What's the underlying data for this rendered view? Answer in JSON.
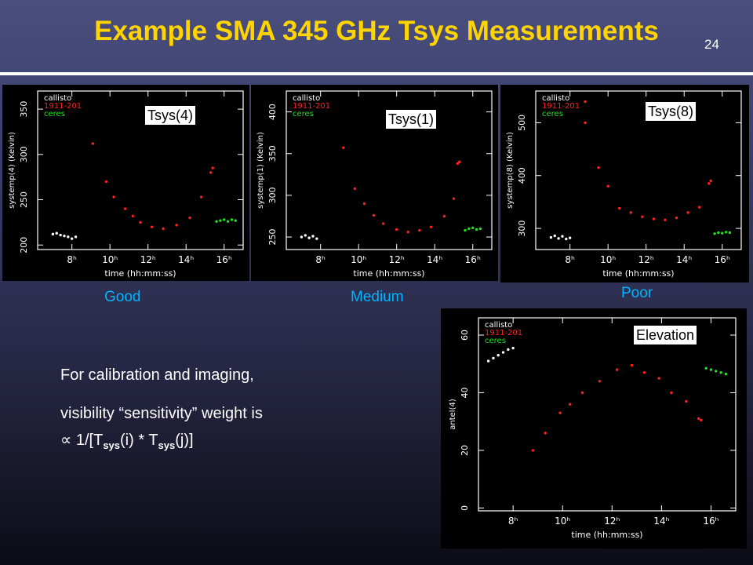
{
  "slide": {
    "title": "Example SMA 345 GHz Tsys Measurements",
    "number": "24"
  },
  "colors": {
    "title": "#ffd400",
    "quality_label": "#00b4ff",
    "callisto": "#ffffff",
    "source_1911": "#ff2020",
    "ceres": "#20e020"
  },
  "labels": {
    "good": "Good",
    "medium": "Medium",
    "poor": "Poor"
  },
  "text": {
    "line1": "For calibration and imaging,",
    "line2": "visibility “sensitivity” weight is",
    "prop_symbol": "∝",
    "formula_a": " 1/[T",
    "sub1": "sys",
    "formula_b": "(i) * T",
    "sub2": "sys",
    "formula_c": "(j)]"
  },
  "chart_data": [
    {
      "type": "scatter",
      "title": "Tsys(4)",
      "xlabel": "time (hh:mm:ss)",
      "ylabel": "systemp(4) (Kelvin)",
      "xlim": [
        6.2,
        17.0
      ],
      "ylim": [
        195,
        370
      ],
      "xticks": [
        8,
        10,
        12,
        14,
        16
      ],
      "xtick_labels": [
        "8ʰ",
        "10ʰ",
        "12ʰ",
        "14ʰ",
        "16ʰ"
      ],
      "yticks": [
        200,
        250,
        300,
        350
      ],
      "legend": [
        "callisto",
        "1911-201",
        "ceres"
      ],
      "legend_position": "top-left",
      "series": [
        {
          "name": "callisto",
          "points": [
            [
              7.0,
              212
            ],
            [
              7.2,
              213
            ],
            [
              7.4,
              211
            ],
            [
              7.6,
              210
            ],
            [
              7.8,
              209
            ],
            [
              8.0,
              207
            ],
            [
              8.2,
              209
            ]
          ]
        },
        {
          "name": "1911-201",
          "points": [
            [
              9.1,
              312
            ],
            [
              9.8,
              270
            ],
            [
              10.2,
              253
            ],
            [
              10.8,
              240
            ],
            [
              11.2,
              232
            ],
            [
              11.6,
              225
            ],
            [
              12.2,
              220
            ],
            [
              12.8,
              218
            ],
            [
              13.5,
              222
            ],
            [
              14.2,
              230
            ],
            [
              14.8,
              253
            ],
            [
              15.3,
              280
            ],
            [
              15.4,
              285
            ]
          ]
        },
        {
          "name": "ceres",
          "points": [
            [
              15.6,
              226
            ],
            [
              15.8,
              227
            ],
            [
              16.0,
              228
            ],
            [
              16.2,
              226
            ],
            [
              16.4,
              228
            ],
            [
              16.6,
              227
            ]
          ]
        }
      ]
    },
    {
      "type": "scatter",
      "title": "Tsys(1)",
      "xlabel": "time (hh:mm:ss)",
      "ylabel": "systemp(1) (Kelvin)",
      "xlim": [
        6.2,
        17.0
      ],
      "ylim": [
        235,
        425
      ],
      "xticks": [
        8,
        10,
        12,
        14,
        16
      ],
      "xtick_labels": [
        "8ʰ",
        "10ʰ",
        "12ʰ",
        "14ʰ",
        "16ʰ"
      ],
      "yticks": [
        250,
        300,
        350,
        400
      ],
      "legend": [
        "callisto",
        "1911-201",
        "ceres"
      ],
      "legend_position": "top-left",
      "series": [
        {
          "name": "callisto",
          "points": [
            [
              7.0,
              250
            ],
            [
              7.2,
              252
            ],
            [
              7.4,
              249
            ],
            [
              7.6,
              251
            ],
            [
              7.8,
              248
            ]
          ]
        },
        {
          "name": "1911-201",
          "points": [
            [
              9.2,
              357
            ],
            [
              9.8,
              308
            ],
            [
              10.3,
              290
            ],
            [
              10.8,
              276
            ],
            [
              11.3,
              266
            ],
            [
              12.0,
              259
            ],
            [
              12.6,
              256
            ],
            [
              13.2,
              258
            ],
            [
              13.8,
              262
            ],
            [
              14.5,
              275
            ],
            [
              15.0,
              296
            ],
            [
              15.2,
              338
            ],
            [
              15.3,
              340
            ]
          ]
        },
        {
          "name": "ceres",
          "points": [
            [
              15.6,
              258
            ],
            [
              15.8,
              260
            ],
            [
              16.0,
              261
            ],
            [
              16.2,
              259
            ],
            [
              16.4,
              260
            ]
          ]
        }
      ]
    },
    {
      "type": "scatter",
      "title": "Tsys(8)",
      "xlabel": "time (hh:mm:ss)",
      "ylabel": "systemp(8) (Kelvin)",
      "xlim": [
        6.2,
        17.0
      ],
      "ylim": [
        260,
        560
      ],
      "xticks": [
        8,
        10,
        12,
        14,
        16
      ],
      "xtick_labels": [
        "8ʰ",
        "10ʰ",
        "12ʰ",
        "14ʰ",
        "16ʰ"
      ],
      "yticks": [
        300,
        400,
        500
      ],
      "legend": [
        "callisto",
        "1911-201",
        "ceres"
      ],
      "legend_position": "top-left",
      "series": [
        {
          "name": "callisto",
          "points": [
            [
              7.0,
              283
            ],
            [
              7.2,
              286
            ],
            [
              7.4,
              281
            ],
            [
              7.6,
              285
            ],
            [
              7.8,
              280
            ],
            [
              8.0,
              282
            ]
          ]
        },
        {
          "name": "1911-201",
          "points": [
            [
              8.8,
              540
            ],
            [
              8.8,
              500
            ],
            [
              9.5,
              415
            ],
            [
              10.0,
              380
            ],
            [
              10.6,
              338
            ],
            [
              11.2,
              330
            ],
            [
              11.8,
              322
            ],
            [
              12.4,
              318
            ],
            [
              13.0,
              316
            ],
            [
              13.6,
              320
            ],
            [
              14.2,
              330
            ],
            [
              14.8,
              340
            ],
            [
              15.3,
              385
            ],
            [
              15.4,
              390
            ]
          ]
        },
        {
          "name": "ceres",
          "points": [
            [
              15.6,
              290
            ],
            [
              15.8,
              292
            ],
            [
              16.0,
              291
            ],
            [
              16.2,
              293
            ],
            [
              16.4,
              292
            ]
          ]
        }
      ]
    },
    {
      "type": "scatter",
      "title": "Elevation",
      "xlabel": "time (hh:mm:ss)",
      "ylabel": "antel(4)",
      "xlim": [
        6.6,
        17.0
      ],
      "ylim": [
        -1,
        66
      ],
      "xticks": [
        8,
        10,
        12,
        14,
        16
      ],
      "xtick_labels": [
        "8ʰ",
        "10ʰ",
        "12ʰ",
        "14ʰ",
        "16ʰ"
      ],
      "yticks": [
        0,
        20,
        40,
        60
      ],
      "legend": [
        "callisto",
        "1911-201",
        "ceres"
      ],
      "legend_position": "top-left",
      "series": [
        {
          "name": "callisto",
          "points": [
            [
              7.0,
              51
            ],
            [
              7.2,
              52
            ],
            [
              7.4,
              53
            ],
            [
              7.6,
              54
            ],
            [
              7.8,
              55
            ],
            [
              8.0,
              55.5
            ]
          ]
        },
        {
          "name": "1911-201",
          "points": [
            [
              8.8,
              20
            ],
            [
              9.3,
              26
            ],
            [
              9.9,
              33
            ],
            [
              10.3,
              36
            ],
            [
              10.8,
              40
            ],
            [
              11.5,
              44
            ],
            [
              12.2,
              48
            ],
            [
              12.8,
              49.5
            ],
            [
              13.3,
              47
            ],
            [
              13.9,
              45
            ],
            [
              14.4,
              40
            ],
            [
              15.0,
              37
            ],
            [
              15.5,
              31
            ],
            [
              15.6,
              30.5
            ]
          ]
        },
        {
          "name": "ceres",
          "points": [
            [
              15.8,
              48.5
            ],
            [
              16.0,
              48
            ],
            [
              16.2,
              47.5
            ],
            [
              16.4,
              47
            ],
            [
              16.6,
              46.5
            ]
          ]
        }
      ]
    }
  ]
}
